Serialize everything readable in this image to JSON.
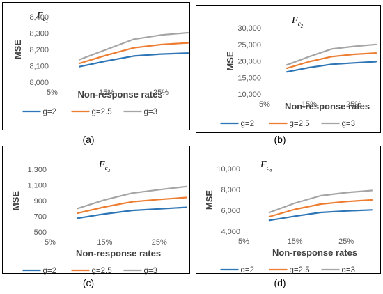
{
  "colors": {
    "g=2": "#2E75B6",
    "g=2.5": "#ED7D31",
    "g=3": "#A5A5A5"
  },
  "chart_data": [
    {
      "type": "line",
      "panel_label": "(a)",
      "title": {
        "base": "F",
        "sub": "c",
        "subsub": "1"
      },
      "xlabel": "Non-response rates",
      "ylabel": "MSE",
      "x_ticks": [
        "5%",
        "15%",
        "25%"
      ],
      "xlim": [
        5,
        30
      ],
      "y_ticks": [
        "8,000",
        "8,100",
        "8,200",
        "8,300",
        "8,400"
      ],
      "ylim": [
        8000,
        8400
      ],
      "x": [
        10,
        15,
        20,
        25,
        30
      ],
      "series": [
        {
          "name": "g=2",
          "values": [
            8095,
            8130,
            8160,
            8172,
            8178
          ]
        },
        {
          "name": "g=2.5",
          "values": [
            8115,
            8165,
            8210,
            8230,
            8240
          ]
        },
        {
          "name": "g=3",
          "values": [
            8138,
            8200,
            8262,
            8288,
            8302
          ]
        }
      ],
      "legend_position": "bottom"
    },
    {
      "type": "line",
      "panel_label": "(b)",
      "title": {
        "base": "F",
        "sub": "c",
        "subsub": "2"
      },
      "xlabel": "Non-response rates",
      "ylabel": "MSE",
      "x_ticks": [
        "5%",
        "15%",
        "25%"
      ],
      "xlim": [
        5,
        30
      ],
      "y_ticks": [
        "10,000",
        "15,000",
        "20,000",
        "25,000",
        "30,000"
      ],
      "ylim": [
        10000,
        30000
      ],
      "x": [
        10,
        15,
        20,
        25,
        30
      ],
      "series": [
        {
          "name": "g=2",
          "values": [
            16700,
            18000,
            19000,
            19400,
            19800
          ]
        },
        {
          "name": "g=2.5",
          "values": [
            17800,
            19800,
            21300,
            22000,
            22400
          ]
        },
        {
          "name": "g=3",
          "values": [
            18800,
            21300,
            23600,
            24400,
            25000
          ]
        }
      ],
      "legend_position": "bottom"
    },
    {
      "type": "line",
      "panel_label": "(c)",
      "title": {
        "base": "F",
        "sub": "c",
        "subsub": "3"
      },
      "xlabel": "Non-response rates",
      "ylabel": "MSE",
      "x_ticks": [
        "5%",
        "15%",
        "25%"
      ],
      "xlim": [
        5,
        30
      ],
      "y_ticks": [
        "500",
        "700",
        "900",
        "1,100",
        "1,300"
      ],
      "ylim": [
        500,
        1300
      ],
      "x": [
        10,
        15,
        20,
        25,
        30
      ],
      "series": [
        {
          "name": "g=2",
          "values": [
            675,
            730,
            775,
            795,
            815
          ]
        },
        {
          "name": "g=2.5",
          "values": [
            740,
            820,
            885,
            915,
            940
          ]
        },
        {
          "name": "g=3",
          "values": [
            800,
            910,
            995,
            1040,
            1080
          ]
        }
      ],
      "legend_position": "bottom"
    },
    {
      "type": "line",
      "panel_label": "(d)",
      "title": {
        "base": "F",
        "sub": "c",
        "subsub": "4"
      },
      "xlabel": "Non-response rates",
      "ylabel": "MSE",
      "x_ticks": [
        "5%",
        "15%",
        "25%"
      ],
      "xlim": [
        5,
        30
      ],
      "y_ticks": [
        "4,000",
        "6,000",
        "8,000",
        "10,000"
      ],
      "ylim": [
        4000,
        10000
      ],
      "x": [
        10,
        15,
        20,
        25,
        30
      ],
      "series": [
        {
          "name": "g=2",
          "values": [
            5050,
            5450,
            5800,
            5950,
            6050
          ]
        },
        {
          "name": "g=2.5",
          "values": [
            5400,
            6100,
            6600,
            6850,
            7000
          ]
        },
        {
          "name": "g=3",
          "values": [
            5800,
            6700,
            7400,
            7700,
            7900
          ]
        }
      ],
      "legend_position": "bottom"
    }
  ]
}
